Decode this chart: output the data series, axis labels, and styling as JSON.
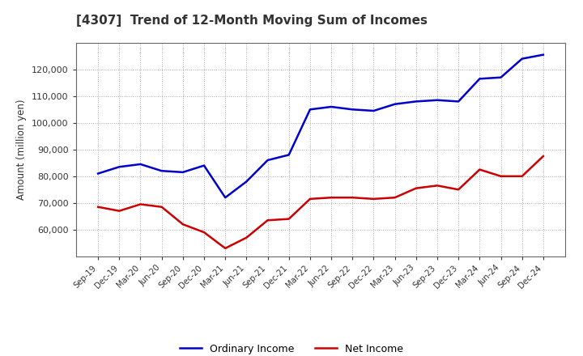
{
  "title": "[4307]  Trend of 12-Month Moving Sum of Incomes",
  "ylabel": "Amount (million yen)",
  "background_color": "#ffffff",
  "plot_background": "#ffffff",
  "ordinary_income_color": "#0000cc",
  "net_income_color": "#cc0000",
  "line_width": 1.8,
  "labels": [
    "Ordinary Income",
    "Net Income"
  ],
  "x_labels": [
    "Sep-19",
    "Dec-19",
    "Mar-20",
    "Jun-20",
    "Sep-20",
    "Dec-20",
    "Mar-21",
    "Jun-21",
    "Sep-21",
    "Dec-21",
    "Mar-22",
    "Jun-22",
    "Sep-22",
    "Dec-22",
    "Mar-23",
    "Jun-23",
    "Sep-23",
    "Dec-23",
    "Mar-24",
    "Jun-24",
    "Sep-24",
    "Dec-24"
  ],
  "ordinary_income": [
    81000,
    83500,
    84500,
    82000,
    81500,
    84000,
    72000,
    78000,
    86000,
    88000,
    105000,
    106000,
    105000,
    104500,
    107000,
    108000,
    108500,
    108000,
    116500,
    117000,
    124000,
    125500
  ],
  "net_income": [
    68500,
    67000,
    69500,
    68500,
    62000,
    59000,
    53000,
    57000,
    63500,
    64000,
    71500,
    72000,
    72000,
    71500,
    72000,
    75500,
    76500,
    75000,
    82500,
    80000,
    80000,
    87500
  ],
  "ylim_min": 50000,
  "ylim_max": 130000,
  "yticks": [
    60000,
    70000,
    80000,
    90000,
    100000,
    110000,
    120000
  ]
}
